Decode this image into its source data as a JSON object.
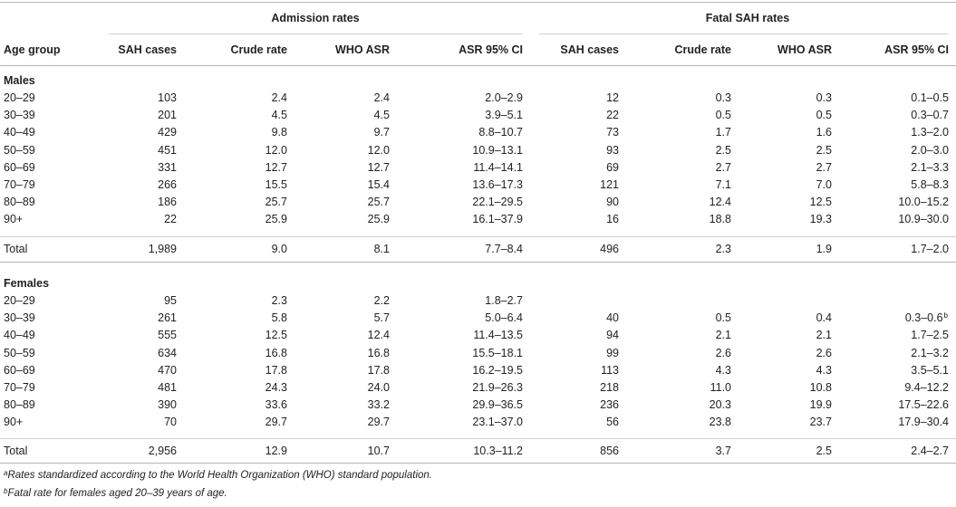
{
  "header": {
    "group1": "Admission rates",
    "group2": "Fatal SAH rates",
    "columns": [
      "Age group",
      "SAH cases",
      "Crude rate",
      "WHO ASR",
      "ASR 95% CI",
      "SAH cases",
      "Crude rate",
      "WHO ASR",
      "ASR 95% CI"
    ]
  },
  "sections": [
    {
      "title": "Males",
      "rows": [
        [
          "20–29",
          "103",
          "2.4",
          "2.4",
          "2.0–2.9",
          "12",
          "0.3",
          "0.3",
          "0.1–0.5"
        ],
        [
          "30–39",
          "201",
          "4.5",
          "4.5",
          "3.9–5.1",
          "22",
          "0.5",
          "0.5",
          "0.3–0.7"
        ],
        [
          "40–49",
          "429",
          "9.8",
          "9.7",
          "8.8–10.7",
          "73",
          "1.7",
          "1.6",
          "1.3–2.0"
        ],
        [
          "50–59",
          "451",
          "12.0",
          "12.0",
          "10.9–13.1",
          "93",
          "2.5",
          "2.5",
          "2.0–3.0"
        ],
        [
          "60–69",
          "331",
          "12.7",
          "12.7",
          "11.4–14.1",
          "69",
          "2.7",
          "2.7",
          "2.1–3.3"
        ],
        [
          "70–79",
          "266",
          "15.5",
          "15.4",
          "13.6–17.3",
          "121",
          "7.1",
          "7.0",
          "5.8–8.3"
        ],
        [
          "80–89",
          "186",
          "25.7",
          "25.7",
          "22.1–29.5",
          "90",
          "12.4",
          "12.5",
          "10.0–15.2"
        ],
        [
          "90+",
          "22",
          "25.9",
          "25.9",
          "16.1–37.9",
          "16",
          "18.8",
          "19.3",
          "10.9–30.0"
        ]
      ],
      "total": [
        "Total",
        "1,989",
        "9.0",
        "8.1",
        "7.7–8.4",
        "496",
        "2.3",
        "1.9",
        "1.7–2.0"
      ]
    },
    {
      "title": "Females",
      "rows": [
        [
          "20–29",
          "95",
          "2.3",
          "2.2",
          "1.8–2.7",
          "",
          "",
          "",
          ""
        ],
        [
          "30–39",
          "261",
          "5.8",
          "5.7",
          "5.0–6.4",
          "40",
          "0.5",
          "0.4",
          "0.3–0.6"
        ],
        [
          "40–49",
          "555",
          "12.5",
          "12.4",
          "11.4–13.5",
          "94",
          "2.1",
          "2.1",
          "1.7–2.5"
        ],
        [
          "50–59",
          "634",
          "16.8",
          "16.8",
          "15.5–18.1",
          "99",
          "2.6",
          "2.6",
          "2.1–3.2"
        ],
        [
          "60–69",
          "470",
          "17.8",
          "17.8",
          "16.2–19.5",
          "113",
          "4.3",
          "4.3",
          "3.5–5.1"
        ],
        [
          "70–79",
          "481",
          "24.3",
          "24.0",
          "21.9–26.3",
          "218",
          "11.0",
          "10.8",
          "9.4–12.2"
        ],
        [
          "80–89",
          "390",
          "33.6",
          "33.2",
          "29.9–36.5",
          "236",
          "20.3",
          "19.9",
          "17.5–22.6"
        ],
        [
          "90+",
          "70",
          "29.7",
          "29.7",
          "23.1–37.0",
          "56",
          "23.8",
          "23.7",
          "17.9–30.4"
        ]
      ],
      "total": [
        "Total",
        "2,956",
        "12.9",
        "10.7",
        "10.3–11.2",
        "856",
        "3.7",
        "2.5",
        "2.4–2.7"
      ]
    }
  ],
  "superscript_b": "b",
  "footnotes": [
    {
      "mark": "a",
      "text": "Rates standardized according to the World Health Organization (WHO) standard population."
    },
    {
      "mark": "b",
      "text": "Fatal rate for females aged 20–39 years of age."
    }
  ]
}
